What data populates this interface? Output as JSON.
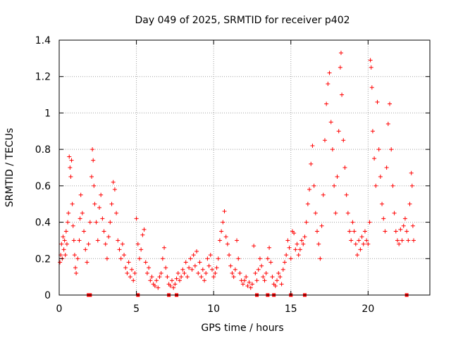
{
  "chart_data": {
    "type": "scatter",
    "title": "Day 049 of 2025, SRMTID for receiver p402",
    "xlabel": "GPS time / hours",
    "ylabel": "SRMTID / TECUs",
    "xlim": [
      0,
      24
    ],
    "ylim": [
      0,
      1.4
    ],
    "xticks": [
      0,
      5,
      10,
      15,
      20
    ],
    "yticks": [
      0,
      0.2,
      0.4,
      0.6,
      0.8,
      1,
      1.2,
      1.4
    ],
    "xtick_labels": [
      "0",
      "5",
      "10",
      "15",
      "20"
    ],
    "ytick_labels": [
      "0",
      "0.2",
      "0.4",
      "0.6",
      "0.8",
      "1",
      "1.2",
      "1.4"
    ],
    "grid": true,
    "marker": "plus",
    "series_color": "#ff0000",
    "axis_color": "#000000",
    "grid_color": "#a0a0a0",
    "series": [
      {
        "name": "SRMTID",
        "points": [
          [
            0.05,
            0.18
          ],
          [
            0.1,
            0.22
          ],
          [
            0.15,
            0.28
          ],
          [
            0.2,
            0.2
          ],
          [
            0.25,
            0.32
          ],
          [
            0.3,
            0.25
          ],
          [
            0.35,
            0.3
          ],
          [
            0.4,
            0.22
          ],
          [
            0.45,
            0.35
          ],
          [
            0.5,
            0.28
          ],
          [
            0.55,
            0.4
          ],
          [
            0.6,
            0.45
          ],
          [
            0.65,
            0.76
          ],
          [
            0.7,
            0.7
          ],
          [
            0.75,
            0.65
          ],
          [
            0.8,
            0.74
          ],
          [
            0.85,
            0.5
          ],
          [
            0.9,
            0.38
          ],
          [
            0.95,
            0.3
          ],
          [
            1.0,
            0.22
          ],
          [
            1.05,
            0.15
          ],
          [
            1.1,
            0.12
          ],
          [
            1.2,
            0.2
          ],
          [
            1.3,
            0.3
          ],
          [
            1.35,
            0.42
          ],
          [
            1.4,
            0.55
          ],
          [
            1.5,
            0.45
          ],
          [
            1.6,
            0.35
          ],
          [
            1.7,
            0.25
          ],
          [
            1.8,
            0.18
          ],
          [
            1.9,
            0.28
          ],
          [
            2.0,
            0.4
          ],
          [
            2.1,
            0.65
          ],
          [
            2.15,
            0.8
          ],
          [
            2.2,
            0.74
          ],
          [
            2.25,
            0.6
          ],
          [
            2.3,
            0.5
          ],
          [
            2.4,
            0.4
          ],
          [
            2.5,
            0.3
          ],
          [
            2.6,
            0.48
          ],
          [
            2.7,
            0.55
          ],
          [
            2.8,
            0.42
          ],
          [
            2.9,
            0.35
          ],
          [
            3.0,
            0.28
          ],
          [
            3.1,
            0.2
          ],
          [
            3.2,
            0.32
          ],
          [
            3.3,
            0.4
          ],
          [
            3.4,
            0.5
          ],
          [
            3.5,
            0.62
          ],
          [
            3.6,
            0.58
          ],
          [
            3.7,
            0.45
          ],
          [
            3.8,
            0.3
          ],
          [
            3.9,
            0.25
          ],
          [
            4.0,
            0.2
          ],
          [
            4.1,
            0.28
          ],
          [
            4.2,
            0.22
          ],
          [
            4.3,
            0.15
          ],
          [
            4.4,
            0.12
          ],
          [
            4.5,
            0.18
          ],
          [
            4.6,
            0.1
          ],
          [
            4.7,
            0.14
          ],
          [
            4.8,
            0.08
          ],
          [
            4.9,
            0.12
          ],
          [
            5.0,
            0.42
          ],
          [
            5.1,
            0.28
          ],
          [
            5.2,
            0.2
          ],
          [
            5.3,
            0.25
          ],
          [
            5.4,
            0.33
          ],
          [
            5.5,
            0.36
          ],
          [
            5.6,
            0.18
          ],
          [
            5.7,
            0.12
          ],
          [
            5.8,
            0.15
          ],
          [
            5.9,
            0.08
          ],
          [
            6.0,
            0.1
          ],
          [
            6.1,
            0.06
          ],
          [
            6.2,
            0.05
          ],
          [
            6.3,
            0.08
          ],
          [
            6.4,
            0.04
          ],
          [
            6.5,
            0.1
          ],
          [
            6.6,
            0.12
          ],
          [
            6.7,
            0.2
          ],
          [
            6.8,
            0.26
          ],
          [
            6.9,
            0.15
          ],
          [
            7.0,
            0.1
          ],
          [
            7.1,
            0.06
          ],
          [
            7.2,
            0.05
          ],
          [
            7.3,
            0.08
          ],
          [
            7.4,
            0.04
          ],
          [
            7.5,
            0.06
          ],
          [
            7.6,
            0.09
          ],
          [
            7.7,
            0.12
          ],
          [
            7.8,
            0.08
          ],
          [
            7.9,
            0.1
          ],
          [
            8.0,
            0.14
          ],
          [
            8.1,
            0.12
          ],
          [
            8.2,
            0.18
          ],
          [
            8.3,
            0.1
          ],
          [
            8.4,
            0.15
          ],
          [
            8.5,
            0.2
          ],
          [
            8.6,
            0.14
          ],
          [
            8.7,
            0.22
          ],
          [
            8.8,
            0.16
          ],
          [
            8.9,
            0.24
          ],
          [
            9.0,
            0.12
          ],
          [
            9.1,
            0.18
          ],
          [
            9.2,
            0.1
          ],
          [
            9.3,
            0.14
          ],
          [
            9.4,
            0.08
          ],
          [
            9.5,
            0.12
          ],
          [
            9.6,
            0.2
          ],
          [
            9.7,
            0.16
          ],
          [
            9.8,
            0.22
          ],
          [
            9.9,
            0.14
          ],
          [
            10.0,
            0.1
          ],
          [
            10.1,
            0.12
          ],
          [
            10.2,
            0.15
          ],
          [
            10.3,
            0.2
          ],
          [
            10.4,
            0.3
          ],
          [
            10.5,
            0.35
          ],
          [
            10.6,
            0.4
          ],
          [
            10.7,
            0.46
          ],
          [
            10.8,
            0.32
          ],
          [
            10.9,
            0.28
          ],
          [
            11.0,
            0.22
          ],
          [
            11.1,
            0.16
          ],
          [
            11.2,
            0.12
          ],
          [
            11.3,
            0.1
          ],
          [
            11.4,
            0.14
          ],
          [
            11.5,
            0.3
          ],
          [
            11.6,
            0.2
          ],
          [
            11.7,
            0.12
          ],
          [
            11.8,
            0.08
          ],
          [
            11.9,
            0.06
          ],
          [
            12.0,
            0.08
          ],
          [
            12.1,
            0.1
          ],
          [
            12.2,
            0.05
          ],
          [
            12.3,
            0.07
          ],
          [
            12.4,
            0.04
          ],
          [
            12.5,
            0.06
          ],
          [
            12.6,
            0.27
          ],
          [
            12.7,
            0.12
          ],
          [
            12.8,
            0.08
          ],
          [
            12.9,
            0.14
          ],
          [
            13.0,
            0.2
          ],
          [
            13.1,
            0.16
          ],
          [
            13.2,
            0.1
          ],
          [
            13.3,
            0.08
          ],
          [
            13.4,
            0.12
          ],
          [
            13.5,
            0.2
          ],
          [
            13.6,
            0.26
          ],
          [
            13.7,
            0.18
          ],
          [
            13.8,
            0.1
          ],
          [
            13.9,
            0.06
          ],
          [
            14.0,
            0.05
          ],
          [
            14.1,
            0.08
          ],
          [
            14.2,
            0.12
          ],
          [
            14.3,
            0.1
          ],
          [
            14.4,
            0.06
          ],
          [
            14.5,
            0.14
          ],
          [
            14.6,
            0.18
          ],
          [
            14.7,
            0.22
          ],
          [
            14.8,
            0.3
          ],
          [
            14.9,
            0.26
          ],
          [
            15.0,
            0.2
          ],
          [
            15.1,
            0.35
          ],
          [
            15.2,
            0.34
          ],
          [
            15.3,
            0.25
          ],
          [
            15.4,
            0.28
          ],
          [
            15.5,
            0.22
          ],
          [
            15.6,
            0.25
          ],
          [
            15.7,
            0.3
          ],
          [
            15.8,
            0.28
          ],
          [
            15.9,
            0.32
          ],
          [
            16.0,
            0.4
          ],
          [
            16.1,
            0.5
          ],
          [
            16.2,
            0.58
          ],
          [
            16.3,
            0.72
          ],
          [
            16.4,
            0.82
          ],
          [
            16.5,
            0.6
          ],
          [
            16.6,
            0.45
          ],
          [
            16.7,
            0.35
          ],
          [
            16.8,
            0.28
          ],
          [
            16.9,
            0.2
          ],
          [
            17.0,
            0.38
          ],
          [
            17.1,
            0.55
          ],
          [
            17.2,
            0.85
          ],
          [
            17.3,
            1.05
          ],
          [
            17.4,
            1.16
          ],
          [
            17.5,
            1.22
          ],
          [
            17.6,
            0.95
          ],
          [
            17.7,
            0.8
          ],
          [
            17.8,
            0.6
          ],
          [
            17.9,
            0.45
          ],
          [
            18.0,
            0.65
          ],
          [
            18.1,
            0.9
          ],
          [
            18.2,
            1.25
          ],
          [
            18.25,
            1.33
          ],
          [
            18.3,
            1.1
          ],
          [
            18.4,
            0.85
          ],
          [
            18.5,
            0.7
          ],
          [
            18.6,
            0.55
          ],
          [
            18.7,
            0.45
          ],
          [
            18.8,
            0.35
          ],
          [
            18.9,
            0.3
          ],
          [
            19.0,
            0.4
          ],
          [
            19.1,
            0.35
          ],
          [
            19.2,
            0.28
          ],
          [
            19.3,
            0.22
          ],
          [
            19.4,
            0.3
          ],
          [
            19.5,
            0.25
          ],
          [
            19.6,
            0.32
          ],
          [
            19.7,
            0.28
          ],
          [
            19.8,
            0.35
          ],
          [
            19.9,
            0.3
          ],
          [
            20.0,
            0.28
          ],
          [
            20.1,
            0.4
          ],
          [
            20.15,
            1.29
          ],
          [
            20.2,
            1.25
          ],
          [
            20.25,
            1.14
          ],
          [
            20.3,
            0.9
          ],
          [
            20.4,
            0.75
          ],
          [
            20.5,
            0.6
          ],
          [
            20.6,
            1.06
          ],
          [
            20.7,
            0.8
          ],
          [
            20.8,
            0.65
          ],
          [
            20.9,
            0.5
          ],
          [
            21.0,
            0.42
          ],
          [
            21.1,
            0.35
          ],
          [
            21.2,
            0.7
          ],
          [
            21.3,
            0.94
          ],
          [
            21.4,
            1.05
          ],
          [
            21.5,
            0.8
          ],
          [
            21.6,
            0.6
          ],
          [
            21.7,
            0.45
          ],
          [
            21.8,
            0.35
          ],
          [
            21.9,
            0.3
          ],
          [
            22.0,
            0.28
          ],
          [
            22.1,
            0.36
          ],
          [
            22.2,
            0.3
          ],
          [
            22.3,
            0.38
          ],
          [
            22.4,
            0.42
          ],
          [
            22.5,
            0.35
          ],
          [
            22.6,
            0.3
          ],
          [
            22.7,
            0.5
          ],
          [
            22.8,
            0.67
          ],
          [
            22.85,
            0.6
          ],
          [
            22.9,
            0.38
          ],
          [
            22.95,
            0.3
          ]
        ]
      }
    ],
    "data_gaps_hours": [
      1.9,
      2.0,
      5.1,
      7.1,
      7.6,
      12.8,
      13.5,
      13.9,
      15.0,
      15.9,
      22.5
    ]
  }
}
